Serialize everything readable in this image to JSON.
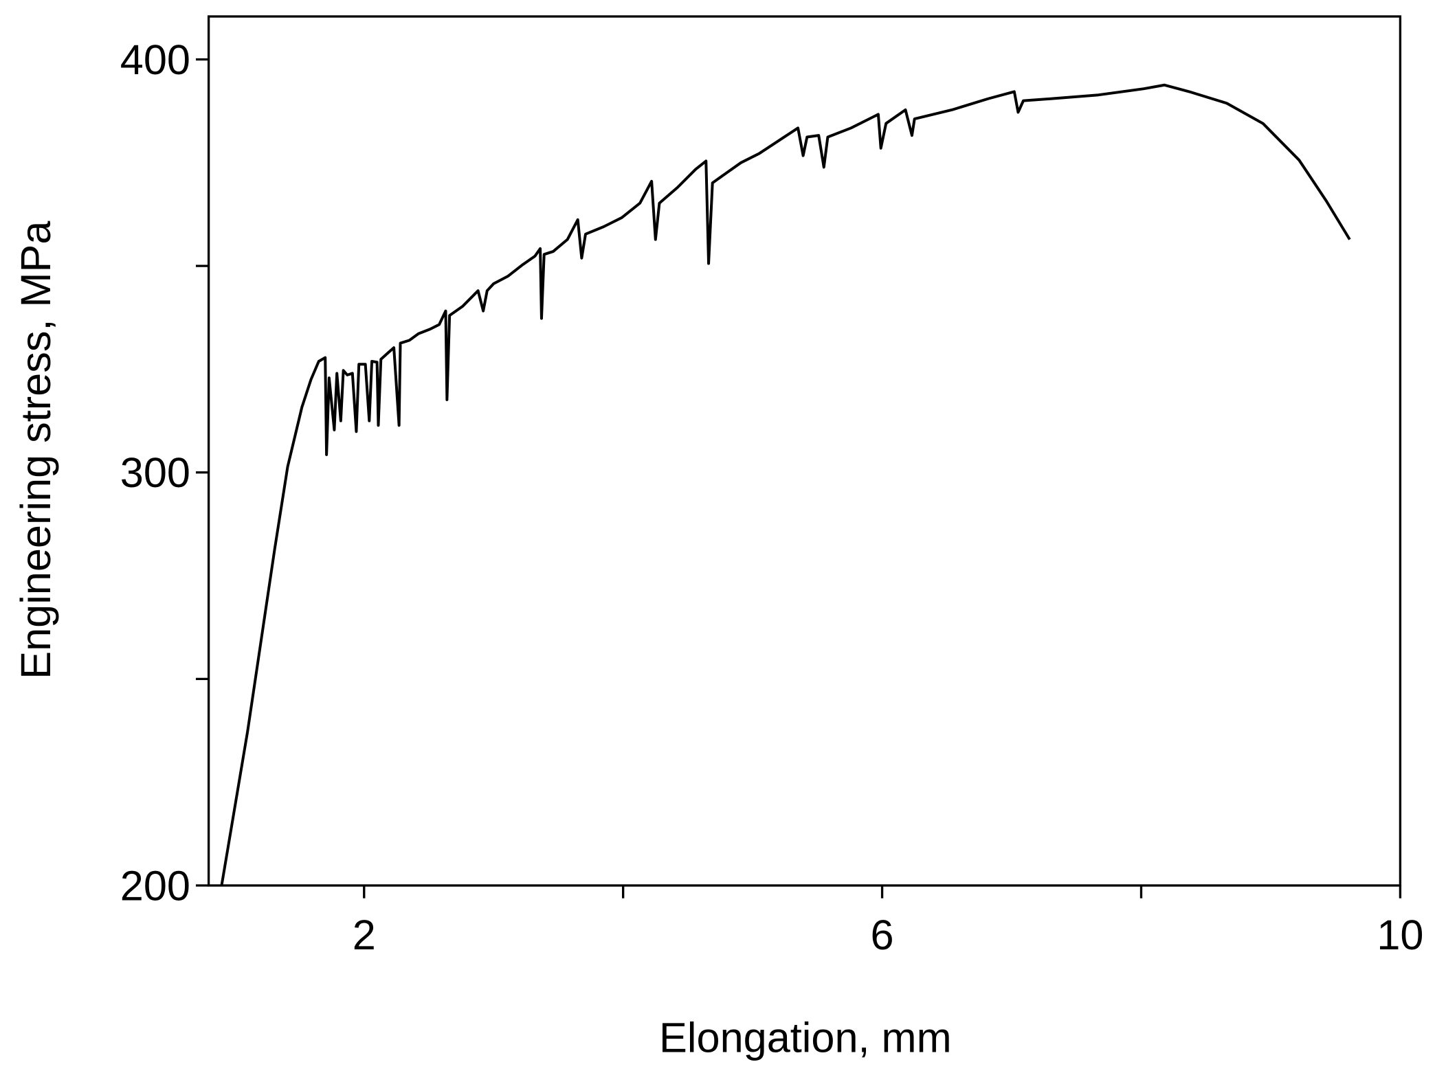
{
  "chart_data": {
    "type": "line",
    "xlabel": "Elongation, mm",
    "ylabel": "Engineering stress, MPa",
    "xlim": [
      0.8,
      10
    ],
    "ylim": [
      200,
      410.4
    ],
    "xticks": [
      2,
      {
        "value": 4,
        "label": null
      },
      6,
      {
        "value": 8,
        "label": null
      },
      10
    ],
    "yticks": [
      200,
      {
        "value": 250,
        "label": null
      },
      300,
      {
        "value": 350,
        "label": null
      },
      400
    ],
    "color": "#000000",
    "x": [
      0.9,
      1.1,
      1.31,
      1.41,
      1.52,
      1.59,
      1.65,
      1.7,
      1.71,
      1.73,
      1.77,
      1.79,
      1.82,
      1.84,
      1.87,
      1.91,
      1.94,
      1.96,
      2.01,
      2.04,
      2.06,
      2.1,
      2.11,
      2.13,
      2.19,
      2.23,
      2.27,
      2.28,
      2.35,
      2.42,
      2.51,
      2.58,
      2.63,
      2.64,
      2.66,
      2.76,
      2.88,
      2.92,
      2.95,
      3.0,
      3.11,
      3.22,
      3.32,
      3.36,
      3.37,
      3.39,
      3.46,
      3.57,
      3.65,
      3.68,
      3.71,
      3.85,
      3.99,
      4.13,
      4.22,
      4.25,
      4.28,
      4.42,
      4.56,
      4.64,
      4.66,
      4.69,
      4.77,
      4.91,
      5.05,
      5.19,
      5.35,
      5.39,
      5.42,
      5.51,
      5.55,
      5.58,
      5.76,
      5.97,
      5.99,
      6.03,
      6.18,
      6.23,
      6.25,
      6.54,
      6.82,
      7.02,
      7.05,
      7.09,
      7.31,
      7.67,
      8.02,
      8.18,
      8.37,
      8.66,
      8.94,
      9.22,
      9.43,
      9.61
    ],
    "values": [
      200,
      237.2,
      281.5,
      301.4,
      315.8,
      322.5,
      326.9,
      327.8,
      304.3,
      322.9,
      310.3,
      324.0,
      312.5,
      324.7,
      323.6,
      324.0,
      309.9,
      326.2,
      326.2,
      312.5,
      326.9,
      326.7,
      311.4,
      327.4,
      329.1,
      330.2,
      311.4,
      331.3,
      332.0,
      333.6,
      334.7,
      335.8,
      339.1,
      317.6,
      338.0,
      340.2,
      344.0,
      339.1,
      344.0,
      345.7,
      347.5,
      350.2,
      352.4,
      354.2,
      337.3,
      352.8,
      353.5,
      356.4,
      361.2,
      351.9,
      357.7,
      359.5,
      361.7,
      365.2,
      370.5,
      356.4,
      365.2,
      369.0,
      373.4,
      375.4,
      350.6,
      370.1,
      371.9,
      375.0,
      377.2,
      380.1,
      383.4,
      376.7,
      381.2,
      381.6,
      373.9,
      381.2,
      383.4,
      386.7,
      378.5,
      384.5,
      387.8,
      381.6,
      385.6,
      387.8,
      390.5,
      392.2,
      387.2,
      390.0,
      390.5,
      391.4,
      392.9,
      393.8,
      392.2,
      389.4,
      384.5,
      375.6,
      365.7,
      356.4
    ]
  }
}
